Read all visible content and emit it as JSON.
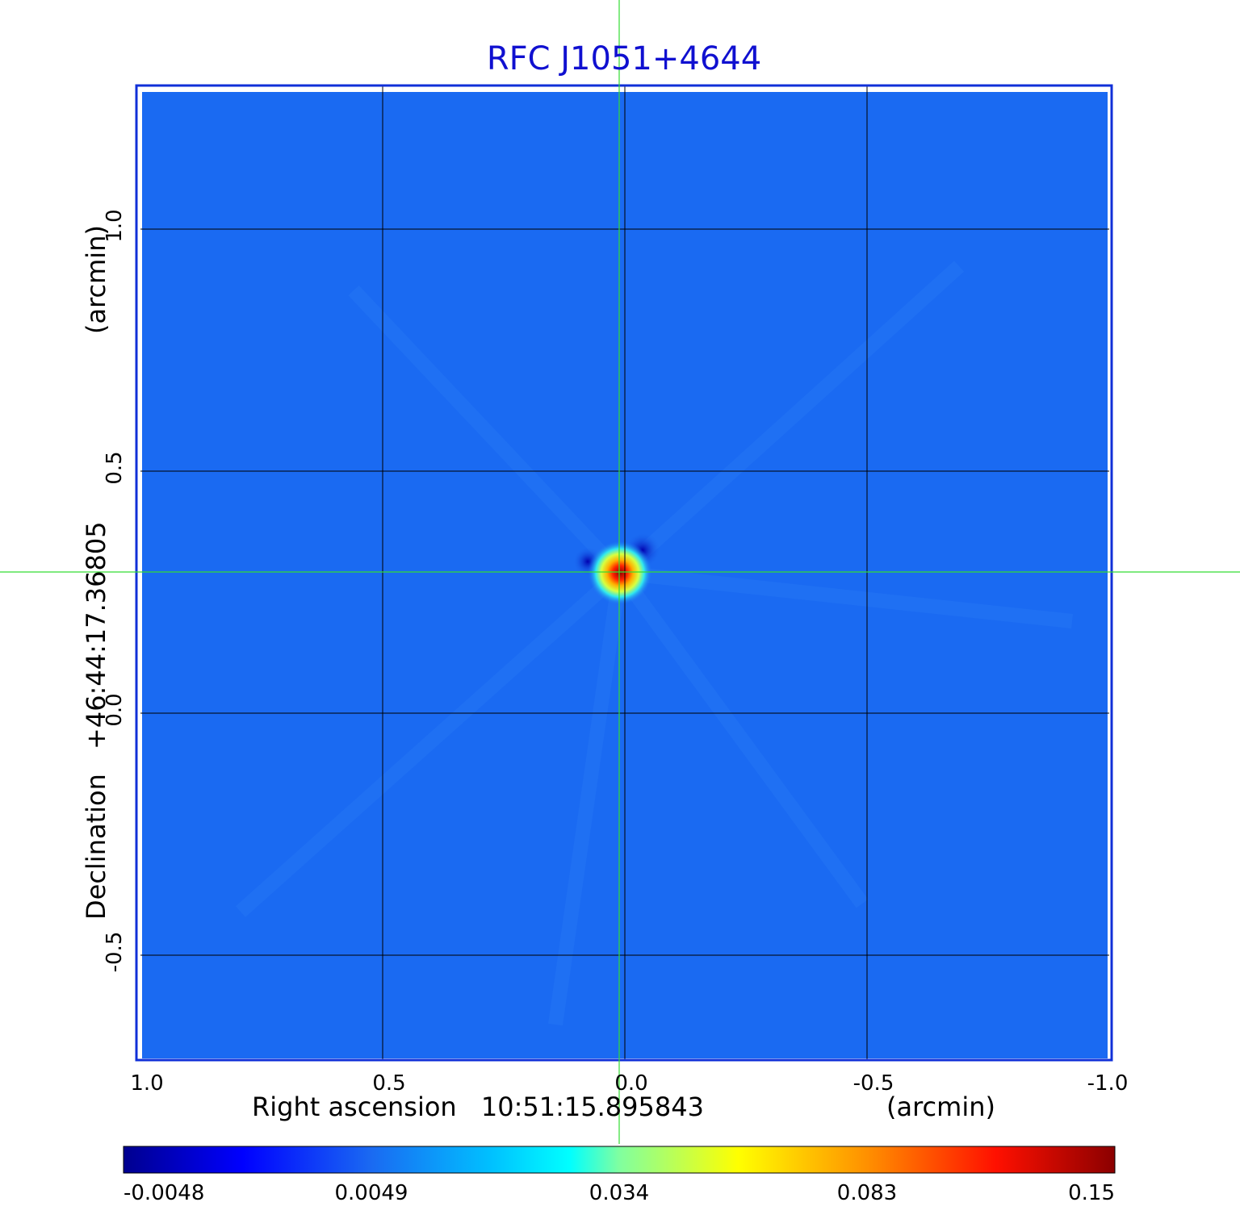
{
  "title": "RFC J1051+4644",
  "colors": {
    "title": "#1010d0",
    "frame": "#1030d8",
    "grid": "#000000",
    "crosshair": "#33dd33",
    "background_map": "#1a6af2"
  },
  "x_axis": {
    "label": "Right ascension",
    "center": "10:51:15.895843",
    "unit": "(arcmin)",
    "ticks": [
      "1.0",
      "0.5",
      "0.0",
      "-0.5",
      "-1.0"
    ]
  },
  "y_axis": {
    "label": "Declination",
    "center": "+46:44:17.36805",
    "unit": "(arcmin)",
    "ticks": [
      "1.0",
      "0.5",
      "0.0",
      "-0.5"
    ]
  },
  "colorbar": {
    "colormap": "jet",
    "ticks": [
      "-0.0048",
      "0.0049",
      "0.034",
      "0.083",
      "0.15"
    ]
  },
  "source": {
    "ra_offset_arcmin": 0.01,
    "dec_offset_arcmin": 0.29,
    "peak": 0.15
  }
}
